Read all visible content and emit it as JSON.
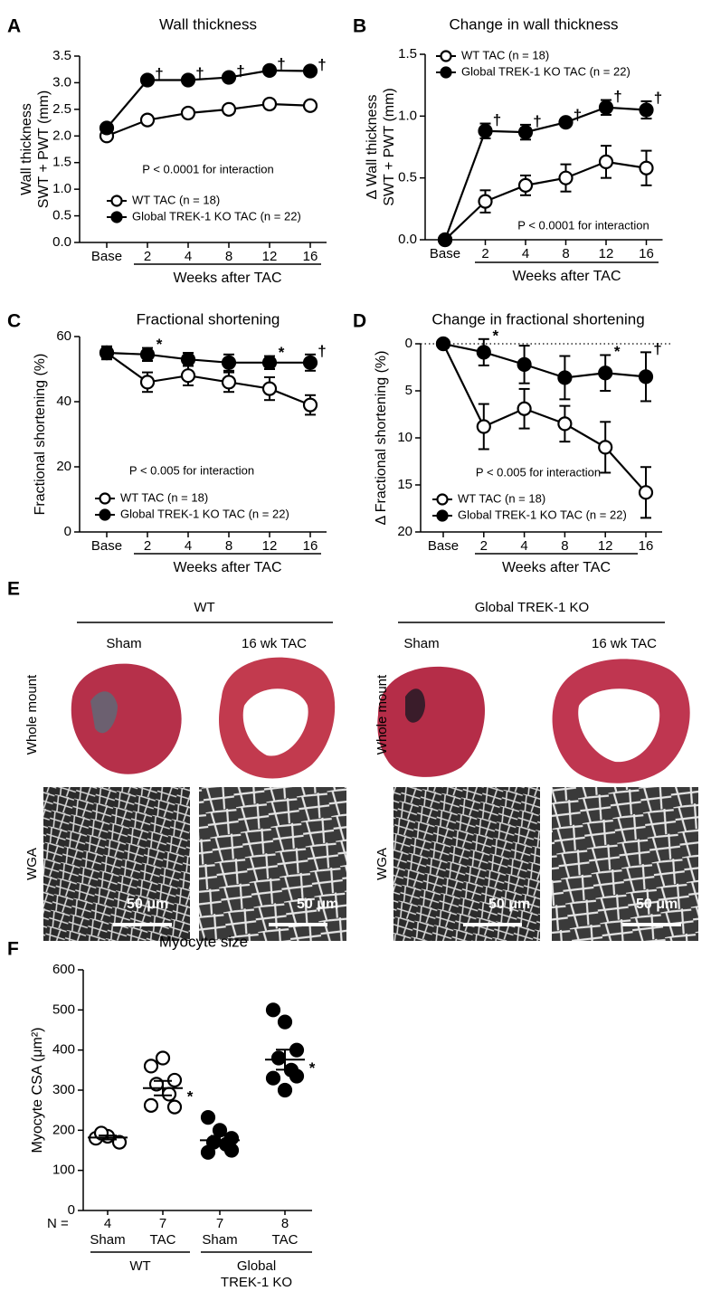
{
  "chart_data": [
    {
      "type": "line",
      "panel": "A",
      "title": "Wall thickness",
      "y_label": [
        "Wall thickness",
        "SWT + PWT (mm)"
      ],
      "categories": [
        "Base",
        "2",
        "4",
        "8",
        "12",
        "16"
      ],
      "x_label": "Weeks after TAC",
      "ylim": [
        0,
        3.5
      ],
      "yticks": [
        {
          "value": 0,
          "label": "0.0"
        },
        0.5,
        {
          "value": 1,
          "label": "1.0"
        },
        1.5,
        {
          "value": 2,
          "label": "2.0"
        },
        2.5,
        {
          "value": 3,
          "label": "3.0"
        },
        3.5
      ],
      "legend": "lower-left",
      "annotation": "P < 0.0001 for interaction",
      "series": [
        {
          "name": "WT TAC (n = 18)",
          "color": "#000000",
          "marker": "open",
          "values": [
            2.0,
            2.3,
            2.43,
            2.5,
            2.6,
            2.57
          ],
          "errors": [
            0.05,
            0.07,
            0.06,
            0.08,
            0.08,
            0.08
          ]
        },
        {
          "name": "Global TREK-1 KO TAC (n = 22)",
          "color": "#000000",
          "marker": "filled",
          "values": [
            2.15,
            3.05,
            3.05,
            3.1,
            3.23,
            3.22
          ],
          "errors": [
            0.05,
            0.05,
            0.06,
            0.05,
            0.06,
            0.05
          ],
          "sig": [
            null,
            "†",
            "†",
            "†",
            "†",
            "†"
          ]
        }
      ]
    },
    {
      "type": "line",
      "panel": "B",
      "title": "Change in wall thickness",
      "y_label": [
        "Δ Wall thickness",
        "SWT + PWT (mm)"
      ],
      "categories": [
        "Base",
        "2",
        "4",
        "8",
        "12",
        "16"
      ],
      "x_label": "Weeks after TAC",
      "ylim": [
        0,
        1.5
      ],
      "yticks": [
        {
          "value": 0,
          "label": "0.0"
        },
        0.5,
        {
          "value": 1,
          "label": "1.0"
        },
        1.5
      ],
      "legend": "upper-left",
      "annotation": "P < 0.0001 for interaction",
      "series": [
        {
          "name": "WT TAC (n = 18)",
          "color": "#000000",
          "marker": "open",
          "values": [
            0,
            0.31,
            0.44,
            0.5,
            0.63,
            0.58
          ],
          "errors": [
            0,
            0.09,
            0.08,
            0.11,
            0.13,
            0.14
          ]
        },
        {
          "name": "Global TREK-1 KO TAC (n = 22)",
          "color": "#000000",
          "marker": "filled",
          "values": [
            0,
            0.88,
            0.87,
            0.95,
            1.07,
            1.05
          ],
          "errors": [
            0,
            0.06,
            0.06,
            0.03,
            0.06,
            0.07
          ],
          "sig": [
            null,
            "†",
            "†",
            "†",
            "†",
            "†"
          ]
        }
      ]
    },
    {
      "type": "line",
      "panel": "C",
      "title": "Fractional shortening",
      "y_label": [
        "Fractional shortening (%)"
      ],
      "categories": [
        "Base",
        "2",
        "4",
        "8",
        "12",
        "16"
      ],
      "x_label": "Weeks after TAC",
      "ylim": [
        0,
        60
      ],
      "yticks": [
        0,
        20,
        40,
        60
      ],
      "legend": "lower-left",
      "annotation": "P < 0.005 for interaction",
      "series": [
        {
          "name": "WT TAC (n = 18)",
          "color": "#000000",
          "marker": "open",
          "values": [
            55,
            46,
            48,
            46,
            44,
            39
          ],
          "errors": [
            2,
            3,
            3,
            3,
            3.5,
            3
          ]
        },
        {
          "name": "Global TREK-1 KO TAC (n = 22)",
          "color": "#000000",
          "marker": "filled",
          "values": [
            55,
            54.5,
            53,
            52,
            52,
            52
          ],
          "errors": [
            1.5,
            2,
            2,
            2.5,
            2,
            2.5
          ],
          "sig": [
            null,
            "*",
            null,
            null,
            "*",
            "†"
          ]
        }
      ]
    },
    {
      "type": "line",
      "panel": "D",
      "title": "Change in fractional shortening",
      "y_label": [
        "Δ Fractional shortening (%)"
      ],
      "categories": [
        "Base",
        "2",
        "4",
        "8",
        "12",
        "16"
      ],
      "x_label": "Weeks after TAC",
      "ylim": [
        0,
        20
      ],
      "y_inverted": true,
      "zero_line": "dotted",
      "yticks": [
        0,
        5,
        10,
        15,
        20
      ],
      "legend": "lower-left",
      "annotation": "P < 0.005 for interaction",
      "series": [
        {
          "name": "WT TAC (n = 18)",
          "color": "#000000",
          "marker": "open",
          "values": [
            0,
            8.8,
            6.9,
            8.5,
            11,
            15.8
          ],
          "errors": [
            0,
            2.4,
            2.1,
            1.9,
            2.7,
            2.7
          ]
        },
        {
          "name": "Global TREK-1 KO TAC (n = 22)",
          "color": "#000000",
          "marker": "filled",
          "values": [
            0,
            0.9,
            2.2,
            3.6,
            3.1,
            3.5
          ],
          "errors": [
            0,
            1.4,
            2,
            2.3,
            1.9,
            2.6
          ],
          "sig": [
            null,
            "*",
            null,
            null,
            "*",
            "†"
          ]
        }
      ]
    },
    {
      "type": "dot",
      "panel": "F",
      "title": "Myocyte size",
      "y_label": [
        "Myocyte CSA (μm²)"
      ],
      "ylim": [
        0,
        600
      ],
      "yticks": [
        0,
        100,
        200,
        300,
        400,
        500,
        600
      ],
      "n_label": "N =",
      "groups": [
        {
          "label": "Sham",
          "n": 4,
          "marker": "open",
          "color": "#000000",
          "values": [
            180,
            185,
            170,
            193
          ],
          "mean": 182,
          "sem": 5
        },
        {
          "label": "TAC",
          "n": 7,
          "marker": "open",
          "color": "#000000",
          "values": [
            360,
            380,
            325,
            315,
            290,
            262,
            258
          ],
          "mean": 305,
          "sem": 18,
          "sig": "*"
        },
        {
          "label": "Sham",
          "n": 7,
          "marker": "filled",
          "color": "#000000",
          "values": [
            232,
            200,
            180,
            170,
            165,
            145,
            150
          ],
          "mean": 175,
          "sem": 11
        },
        {
          "label": "TAC",
          "n": 8,
          "marker": "filled",
          "color": "#000000",
          "values": [
            500,
            470,
            400,
            380,
            350,
            330,
            335,
            300
          ],
          "mean": 376,
          "sem": 25,
          "sig": "*"
        }
      ],
      "genotypes": [
        {
          "label": [
            "WT"
          ]
        },
        {
          "label": [
            "Global",
            "TREK-1 KO"
          ]
        }
      ]
    }
  ],
  "panel_e": {
    "panel": "E",
    "row_labels": [
      "Whole mount",
      "WGA"
    ],
    "groups": [
      {
        "title": "WT",
        "columns": [
          "Sham",
          "16 wk TAC"
        ],
        "scale_labels": [
          "50 μm",
          "50 μm"
        ]
      },
      {
        "title": "Global TREK-1 KO",
        "columns": [
          "Sham",
          "16 wk TAC"
        ],
        "scale_labels": [
          "50 μm",
          "50 μm"
        ]
      }
    ]
  }
}
